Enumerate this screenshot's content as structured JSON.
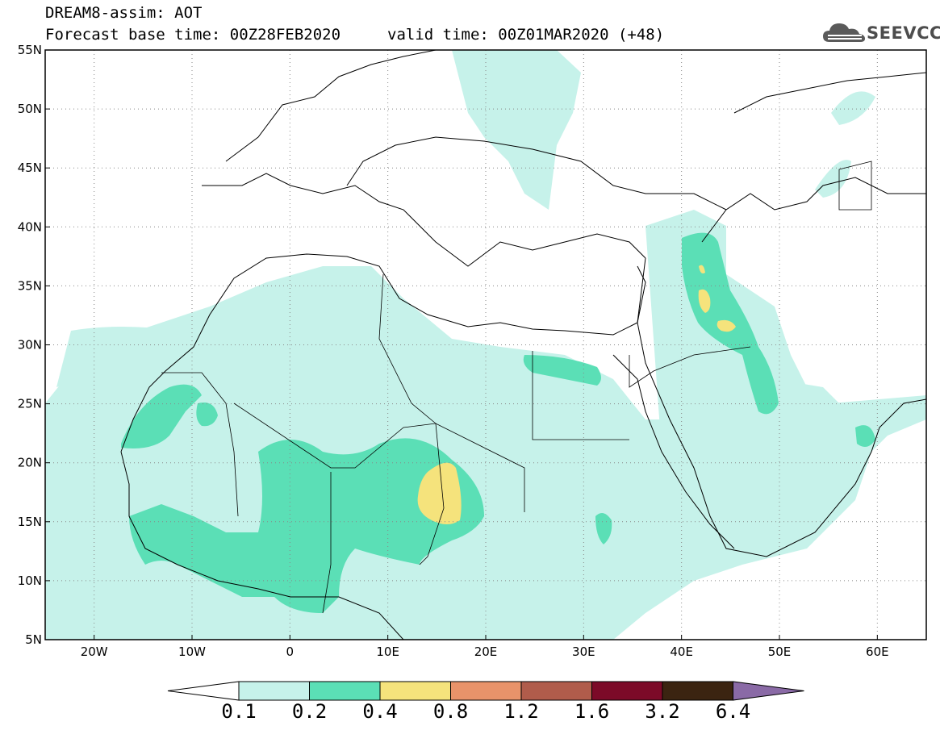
{
  "header": {
    "line1": "DREAM8-assim: AOT",
    "line2": "Forecast base time: 00Z28FEB2020",
    "line3": "valid time: 00Z01MAR2020 (+48)"
  },
  "logo": {
    "text": "SEEVCCC",
    "icon": "cloud-icon"
  },
  "map": {
    "lat_range": [
      5,
      55
    ],
    "lon_range": [
      -25,
      65
    ],
    "lat_ticks": [
      "55N",
      "50N",
      "45N",
      "40N",
      "35N",
      "30N",
      "25N",
      "20N",
      "15N",
      "10N",
      "5N"
    ],
    "lon_ticks": [
      "20W",
      "10W",
      "0",
      "10E",
      "20E",
      "30E",
      "40E",
      "50E",
      "60E"
    ],
    "grid": "dotted"
  },
  "colorbar": {
    "labels": [
      "0.1",
      "0.2",
      "0.4",
      "0.8",
      "1.2",
      "1.6",
      "3.2",
      "6.4"
    ],
    "colors": [
      "#c6f2ea",
      "#5bdfb6",
      "#f5e37c",
      "#e8936a",
      "#b05c4b",
      "#7c0a28",
      "#3b2411",
      "#8a6aa6"
    ],
    "under_color": "#ffffff"
  }
}
